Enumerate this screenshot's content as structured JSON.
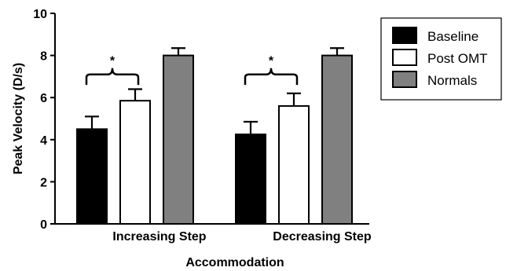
{
  "chart_data": {
    "type": "bar",
    "categories": [
      "Increasing Step",
      "Decreasing Step"
    ],
    "series": [
      {
        "name": "Baseline",
        "values": [
          4.5,
          4.25
        ],
        "errors": [
          0.6,
          0.6
        ],
        "color": "#000000"
      },
      {
        "name": "Post OMT",
        "values": [
          5.85,
          5.6
        ],
        "errors": [
          0.55,
          0.6
        ],
        "color": "#ffffff"
      },
      {
        "name": "Normals",
        "values": [
          8.0,
          8.0
        ],
        "errors": [
          0.35,
          0.35
        ],
        "color": "#808080"
      }
    ],
    "xlabel": "Accommodation",
    "ylabel": "Peak Velocity (D/s)",
    "ylim": [
      0,
      10
    ],
    "yticks": [
      0,
      2,
      4,
      6,
      8,
      10
    ],
    "yticks_labels": [
      "0",
      "2",
      "4",
      "6",
      "8",
      "10"
    ],
    "annotations": [
      {
        "category": "Increasing Step",
        "between": [
          "Baseline",
          "Post OMT"
        ],
        "label": "*"
      },
      {
        "category": "Decreasing Step",
        "between": [
          "Baseline",
          "Post OMT"
        ],
        "label": "*"
      }
    ],
    "legend_position": "right",
    "grid": false
  }
}
